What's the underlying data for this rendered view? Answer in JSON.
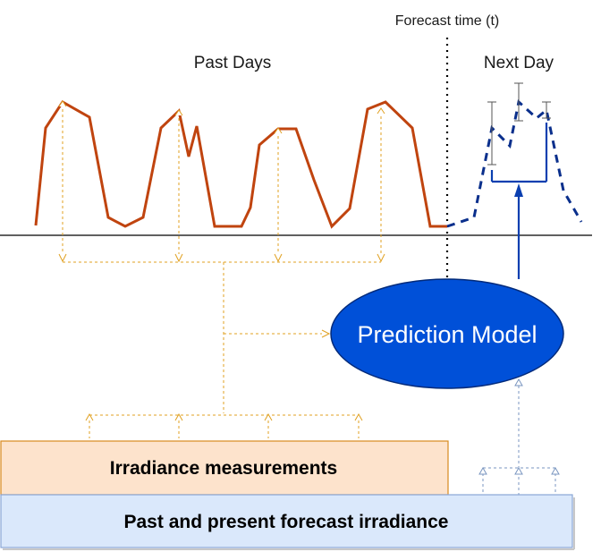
{
  "labels": {
    "forecast_time": "Forecast time (t)",
    "past_days": "Past Days",
    "next_day": "Next Day",
    "prediction_model": "Prediction Model",
    "irradiance_measurements": "Irradiance measurements",
    "past_present_forecast": "Past and present forecast irradiance"
  },
  "colors": {
    "measured_series": "#c0440f",
    "forecast_series": "#0a2f8c",
    "model_fill": "#0050d8",
    "model_stroke": "#002a7a",
    "dashed_orange": "#e0a020",
    "dashed_blue": "#7a96c0",
    "irradiance_box_fill": "#fde3cc",
    "irradiance_box_stroke": "#d88a20",
    "forecast_box_fill": "#dae8fb",
    "forecast_box_stroke": "#8aa6d6",
    "axis": "#000000"
  }
}
